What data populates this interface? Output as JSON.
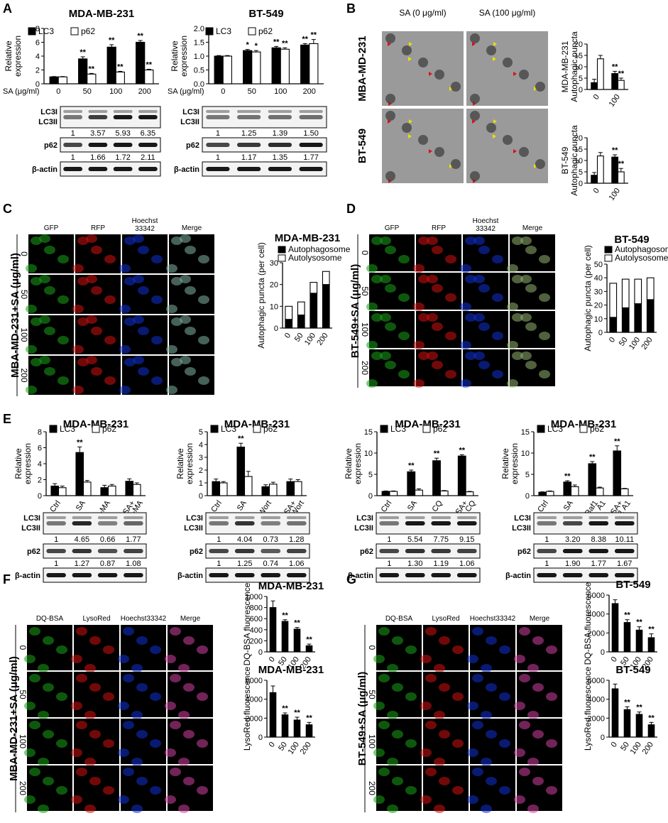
{
  "colors": {
    "filled": "#000000",
    "open": "#ffffff",
    "green": "#1aa01a",
    "red": "#d01010",
    "blue": "#1030d0",
    "em": "#888888"
  },
  "panels": [
    "A",
    "B",
    "C",
    "D",
    "E",
    "F",
    "G"
  ],
  "chart_data": [
    {
      "id": "A1",
      "panel": "A",
      "type": "bar",
      "title": "MDA-MB-231",
      "ylabel": "Relative expression",
      "xlabel": "SA (μg/ml)",
      "categories": [
        "0",
        "50",
        "100",
        "200"
      ],
      "ylim": [
        0,
        8
      ],
      "yticks": [
        "0",
        "2",
        "4",
        "6",
        "8"
      ],
      "series": [
        {
          "name": "LC3",
          "fill": "filled",
          "values": [
            1,
            3.6,
            5.3,
            6.0
          ],
          "err": [
            0.05,
            0.3,
            0.35,
            0.25
          ],
          "sig": [
            "",
            "**",
            "**",
            "**"
          ]
        },
        {
          "name": "p62",
          "fill": "open",
          "values": [
            1,
            1.4,
            1.7,
            2.0
          ],
          "err": [
            0.05,
            0.1,
            0.1,
            0.1
          ],
          "sig": [
            "",
            "**",
            "**",
            "**"
          ]
        }
      ],
      "blots": [
        {
          "label": [
            "LC3I",
            "LC3II"
          ],
          "quant": [
            "1",
            "3.57",
            "5.93",
            "6.35"
          ]
        },
        {
          "label": [
            "p62"
          ],
          "quant": [
            "1",
            "1.66",
            "1.72",
            "2.11"
          ]
        },
        {
          "label": [
            "β-actin"
          ],
          "quant": []
        }
      ]
    },
    {
      "id": "A2",
      "panel": "A",
      "type": "bar",
      "title": "BT-549",
      "ylabel": "Relative expression",
      "xlabel": "SA (μg/ml)",
      "categories": [
        "0",
        "50",
        "100",
        "200"
      ],
      "ylim": [
        0,
        2.0
      ],
      "yticks": [
        "0.0",
        "0.5",
        "1.0",
        "1.5",
        "2.0"
      ],
      "series": [
        {
          "name": "LC3",
          "fill": "filled",
          "values": [
            1,
            1.2,
            1.3,
            1.4
          ],
          "err": [
            0.02,
            0.04,
            0.05,
            0.05
          ],
          "sig": [
            "",
            "*",
            "**",
            "**"
          ]
        },
        {
          "name": "p62",
          "fill": "open",
          "values": [
            1,
            1.15,
            1.25,
            1.45
          ],
          "err": [
            0.02,
            0.05,
            0.05,
            0.15
          ],
          "sig": [
            "",
            "*",
            "**",
            "**"
          ]
        }
      ],
      "blots": [
        {
          "label": [
            "LC3I",
            "LC3II"
          ],
          "quant": [
            "1",
            "1.25",
            "1.39",
            "1.50"
          ]
        },
        {
          "label": [
            "p62"
          ],
          "quant": [
            "1",
            "1.17",
            "1.35",
            "1.77"
          ]
        },
        {
          "label": [
            "β-actin"
          ],
          "quant": []
        }
      ]
    },
    {
      "id": "B1",
      "panel": "B",
      "type": "bar",
      "title": "",
      "ylabel": "MDA-MB-231 Autophagic puncta",
      "categories": [
        "0",
        "100"
      ],
      "ylim": [
        0,
        20
      ],
      "yticks": [
        "0",
        "5",
        "10",
        "15",
        "20"
      ],
      "series": [
        {
          "name": "Autophagosome",
          "fill": "filled",
          "values": [
            3,
            7
          ],
          "err": [
            1.5,
            1
          ],
          "sig": [
            "",
            "**"
          ]
        },
        {
          "name": "Autolysosome",
          "fill": "open",
          "values": [
            13.5,
            4
          ],
          "err": [
            1.5,
            1
          ],
          "sig": [
            "",
            "**"
          ]
        }
      ]
    },
    {
      "id": "B2",
      "panel": "B",
      "type": "bar",
      "title": "",
      "ylabel": "BT-549 Autophagic puncta",
      "categories": [
        "0",
        "100"
      ],
      "ylim": [
        0,
        20
      ],
      "yticks": [
        "0",
        "5",
        "10",
        "15",
        "20"
      ],
      "series": [
        {
          "name": "Autophagosome",
          "fill": "filled",
          "values": [
            3.5,
            11.5
          ],
          "err": [
            1.2,
            1
          ],
          "sig": [
            "",
            "**"
          ]
        },
        {
          "name": "Autolysosome",
          "fill": "open",
          "values": [
            12,
            5
          ],
          "err": [
            1.5,
            1.5
          ],
          "sig": [
            "",
            "**"
          ]
        }
      ]
    },
    {
      "id": "C1",
      "panel": "C",
      "type": "bar",
      "stacked": true,
      "title": "MDA-MB-231",
      "ylabel": "Autophagic puncta (per cell)",
      "categories": [
        "0",
        "50",
        "100",
        "200"
      ],
      "ylim": [
        0,
        30
      ],
      "yticks": [
        "0",
        "10",
        "20",
        "30"
      ],
      "series": [
        {
          "name": "Autophagosome",
          "fill": "filled",
          "values": [
            4,
            6,
            16,
            20
          ],
          "sig": [
            "",
            "",
            "**",
            "**"
          ]
        },
        {
          "name": "Autolysosome",
          "fill": "open",
          "values": [
            6,
            6,
            5,
            6
          ],
          "sig": [
            "",
            "",
            "",
            ""
          ]
        }
      ]
    },
    {
      "id": "D1",
      "panel": "D",
      "type": "bar",
      "stacked": true,
      "title": "BT-549",
      "ylabel": "Autophagic puncta (per cell)",
      "categories": [
        "0",
        "50",
        "100",
        "200"
      ],
      "ylim": [
        0,
        50
      ],
      "yticks": [
        "0",
        "10",
        "20",
        "30",
        "40",
        "50"
      ],
      "series": [
        {
          "name": "Autophagosome",
          "fill": "filled",
          "values": [
            11,
            18,
            21,
            24
          ],
          "sig": [
            "",
            "*",
            "**",
            "**"
          ]
        },
        {
          "name": "Autolysosome",
          "fill": "open",
          "values": [
            25,
            21,
            18,
            16
          ],
          "sig": [
            "",
            "",
            "",
            ""
          ]
        }
      ]
    },
    {
      "id": "E1",
      "panel": "E",
      "type": "bar",
      "title": "MDA-MB-231",
      "ylabel": "Relative expression",
      "categories": [
        "Ctrl",
        "SA",
        "3-MA",
        "SA+ 3-MA"
      ],
      "ylim": [
        0,
        8
      ],
      "yticks": [
        "0",
        "2",
        "4",
        "6",
        "8"
      ],
      "series": [
        {
          "name": "LC3",
          "fill": "filled",
          "values": [
            1.2,
            5.4,
            1.0,
            1.8
          ],
          "err": [
            0.3,
            0.7,
            0.3,
            0.3
          ],
          "sig": [
            "",
            "**",
            "",
            ""
          ]
        },
        {
          "name": "p62",
          "fill": "open",
          "values": [
            1.0,
            1.7,
            1.2,
            1.4
          ],
          "err": [
            0.2,
            0.2,
            0.2,
            0.2
          ],
          "sig": [
            "",
            "",
            "",
            ""
          ]
        }
      ],
      "blots": [
        {
          "label": [
            "LC3I",
            "LC3II"
          ],
          "quant": [
            "1",
            "4.65",
            "0.66",
            "1.77"
          ]
        },
        {
          "label": [
            "p62"
          ],
          "quant": [
            "1",
            "1.27",
            "0.87",
            "1.08"
          ]
        },
        {
          "label": [
            "β-actin"
          ],
          "quant": []
        }
      ]
    },
    {
      "id": "E2",
      "panel": "E",
      "type": "bar",
      "title": "MDA-MB-231",
      "ylabel": "Relative expression",
      "categories": [
        "Ctrl",
        "SA",
        "Wort",
        "SA+ Wort"
      ],
      "ylim": [
        0,
        5
      ],
      "yticks": [
        "0",
        "1",
        "2",
        "3",
        "4",
        "5"
      ],
      "series": [
        {
          "name": "LC3",
          "fill": "filled",
          "values": [
            1.1,
            3.8,
            0.7,
            1.1
          ],
          "err": [
            0.2,
            0.3,
            0.15,
            0.2
          ],
          "sig": [
            "",
            "**",
            "",
            ""
          ]
        },
        {
          "name": "p62",
          "fill": "open",
          "values": [
            1.0,
            1.5,
            0.9,
            1.1
          ],
          "err": [
            0.1,
            0.4,
            0.15,
            0.15
          ],
          "sig": [
            "",
            "",
            "",
            ""
          ]
        }
      ],
      "blots": [
        {
          "label": [
            "LC3I",
            "LC3II"
          ],
          "quant": [
            "1",
            "4.04",
            "0.73",
            "1.28"
          ]
        },
        {
          "label": [
            "p62"
          ],
          "quant": [
            "1",
            "1.25",
            "0.74",
            "1.06"
          ]
        },
        {
          "label": [
            "β-actin"
          ],
          "quant": []
        }
      ]
    },
    {
      "id": "E3",
      "panel": "E",
      "type": "bar",
      "title": "MDA-MB-231",
      "ylabel": "Relative expression",
      "categories": [
        "Ctrl",
        "SA",
        "CQ",
        "SA+ CQ"
      ],
      "ylim": [
        0,
        15
      ],
      "yticks": [
        "0",
        "5",
        "10",
        "15"
      ],
      "series": [
        {
          "name": "LC3",
          "fill": "filled",
          "values": [
            1,
            5.6,
            8.2,
            9.3
          ],
          "err": [
            0.1,
            0.4,
            0.6,
            0.3
          ],
          "sig": [
            "",
            "**",
            "**",
            "**"
          ]
        },
        {
          "name": "p62",
          "fill": "open",
          "values": [
            1,
            1.3,
            1.1,
            0.9
          ],
          "err": [
            0.1,
            0.3,
            0.1,
            0.1
          ],
          "sig": [
            "",
            "",
            "",
            ""
          ]
        }
      ],
      "blots": [
        {
          "label": [
            "LC3I",
            "LC3II"
          ],
          "quant": [
            "1",
            "5.54",
            "7.75",
            "9.15"
          ]
        },
        {
          "label": [
            "p62"
          ],
          "quant": [
            "1",
            "1.30",
            "1.19",
            "1.06"
          ]
        },
        {
          "label": [
            "β-actin"
          ],
          "quant": []
        }
      ]
    },
    {
      "id": "E4",
      "panel": "E",
      "type": "bar",
      "title": "MDA-MB-231",
      "ylabel": "Relative expression",
      "categories": [
        "Ctrl",
        "SA",
        "Baf1 A1",
        "SA+ Baf1 A1"
      ],
      "ylim": [
        0,
        15
      ],
      "yticks": [
        "0",
        "5",
        "10",
        "15"
      ],
      "series": [
        {
          "name": "LC3",
          "fill": "filled",
          "values": [
            0.8,
            3.2,
            7.5,
            10.5
          ],
          "err": [
            0.1,
            0.3,
            0.5,
            1.2
          ],
          "sig": [
            "",
            "**",
            "**",
            "**"
          ]
        },
        {
          "name": "p62",
          "fill": "open",
          "values": [
            1,
            2.1,
            1.8,
            1.6
          ],
          "err": [
            0.1,
            0.4,
            0.2,
            0.1
          ],
          "sig": [
            "",
            "",
            "",
            ""
          ]
        }
      ],
      "blots": [
        {
          "label": [
            "LC3I",
            "LC3II"
          ],
          "quant": [
            "1",
            "3.20",
            "8.38",
            "10.11"
          ]
        },
        {
          "label": [
            "p62"
          ],
          "quant": [
            "1",
            "1.90",
            "1.77",
            "1.67"
          ]
        },
        {
          "label": [
            "β-actin"
          ],
          "quant": []
        }
      ]
    },
    {
      "id": "F1",
      "panel": "F",
      "type": "bar",
      "title": "MDA-MB-231",
      "ylabel": "DQ-BSA fluorescence",
      "categories": [
        "0",
        "50",
        "100",
        "200"
      ],
      "ylim": [
        0,
        1000
      ],
      "yticks": [
        "0",
        "200",
        "400",
        "600",
        "800",
        "1000"
      ],
      "series": [
        {
          "name": "",
          "fill": "filled",
          "values": [
            800,
            550,
            410,
            110
          ],
          "err": [
            120,
            30,
            30,
            30
          ],
          "sig": [
            "",
            "**",
            "**",
            "**"
          ]
        }
      ]
    },
    {
      "id": "F2",
      "panel": "F",
      "type": "bar",
      "title": "MDA-MB-231",
      "ylabel": "LysoRed fluorescence",
      "categories": [
        "0",
        "50",
        "100",
        "200"
      ],
      "ylim": [
        0,
        6000
      ],
      "yticks": [
        "0",
        "2000",
        "4000",
        "6000"
      ],
      "series": [
        {
          "name": "",
          "fill": "filled",
          "values": [
            4700,
            2350,
            1800,
            1300
          ],
          "err": [
            700,
            200,
            300,
            250
          ],
          "sig": [
            "",
            "**",
            "**",
            "**"
          ]
        }
      ]
    },
    {
      "id": "G1",
      "panel": "G",
      "type": "bar",
      "title": "BT-549",
      "ylabel": "DQ-BSA fluorescence",
      "categories": [
        "0",
        "50",
        "100",
        "200"
      ],
      "ylim": [
        0,
        6000
      ],
      "yticks": [
        "0",
        "2000",
        "4000",
        "6000"
      ],
      "series": [
        {
          "name": "",
          "fill": "filled",
          "values": [
            5100,
            3100,
            2300,
            1500
          ],
          "err": [
            400,
            300,
            350,
            400
          ],
          "sig": [
            "",
            "**",
            "**",
            "**"
          ]
        }
      ]
    },
    {
      "id": "G2",
      "panel": "G",
      "type": "bar",
      "title": "BT-549",
      "ylabel": "LysoRed fluorescence",
      "categories": [
        "0",
        "50",
        "100",
        "200"
      ],
      "ylim": [
        0,
        6000
      ],
      "yticks": [
        "0",
        "2000",
        "4000",
        "6000"
      ],
      "series": [
        {
          "name": "",
          "fill": "filled",
          "values": [
            5100,
            2900,
            2400,
            1300
          ],
          "err": [
            500,
            300,
            250,
            250
          ],
          "sig": [
            "",
            "**",
            "**",
            "**"
          ]
        }
      ]
    }
  ],
  "micrographs": {
    "B": {
      "col_labels": [
        "SA (0 μg/ml)",
        "SA (100 μg/ml)"
      ],
      "row_labels": [
        "MBA-MD-231",
        "BT-549"
      ]
    },
    "C": {
      "col_labels": [
        "GFP",
        "RFP",
        "Hoechst 33342",
        "Merge"
      ],
      "row_labels": [
        "0",
        "50",
        "100",
        "200"
      ],
      "side": "MBA-MD-231+SA (μg/ml)"
    },
    "D": {
      "col_labels": [
        "GFP",
        "RFP",
        "Hoechst 33342",
        "Merge"
      ],
      "row_labels": [
        "0",
        "50",
        "100",
        "200"
      ],
      "side": "BT-549+SA (μg/ml)"
    },
    "F": {
      "col_labels": [
        "DQ-BSA",
        "LysoRed",
        "Hoechst33342",
        "Merge"
      ],
      "row_labels": [
        "0",
        "50",
        "100",
        "200"
      ],
      "side": "MBA-MD-231+SA (μg/ml)"
    },
    "G": {
      "col_labels": [
        "DQ-BSA",
        "LysoRed",
        "Hoechst33342",
        "Merge"
      ],
      "row_labels": [
        "0",
        "50",
        "100",
        "200"
      ],
      "side": "BT-549+SA (μg/ml)"
    }
  }
}
